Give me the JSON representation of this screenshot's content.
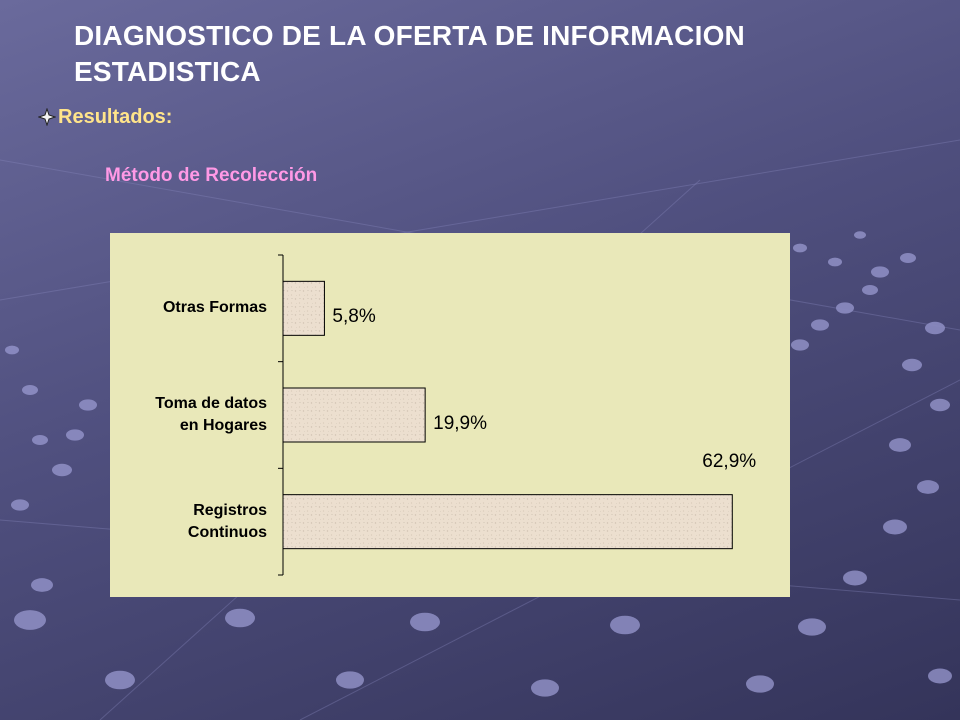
{
  "slide": {
    "title": "DIAGNOSTICO DE LA OFERTA DE INFORMACION ESTADISTICA",
    "bullet_label": "Resultados:",
    "subtitle": "Método de Recolección"
  },
  "colors": {
    "title": "#ffffff",
    "bullet_text": "#ffe48a",
    "subtitle": "#ff99e6",
    "chart_background": "#e9e8b9",
    "bar_fill": "#ecdfcf",
    "bar_border": "#000000"
  },
  "icons": {
    "bullet": "four-point-star-icon"
  },
  "chart_data": {
    "type": "bar",
    "orientation": "horizontal",
    "categories": [
      "Otras Formas",
      "Toma de datos en Hogares",
      "Registros Continuos"
    ],
    "category_lines": [
      [
        "Otras Formas"
      ],
      [
        "Toma de datos",
        "en Hogares"
      ],
      [
        "Registros",
        "Continuos"
      ]
    ],
    "values": [
      5.8,
      19.9,
      62.9
    ],
    "value_labels": [
      "5,8%",
      "19,9%",
      "62,9%"
    ],
    "title": "",
    "xlabel": "",
    "ylabel": "",
    "xlim": [
      0,
      70
    ],
    "grid": false,
    "legend": "none"
  }
}
